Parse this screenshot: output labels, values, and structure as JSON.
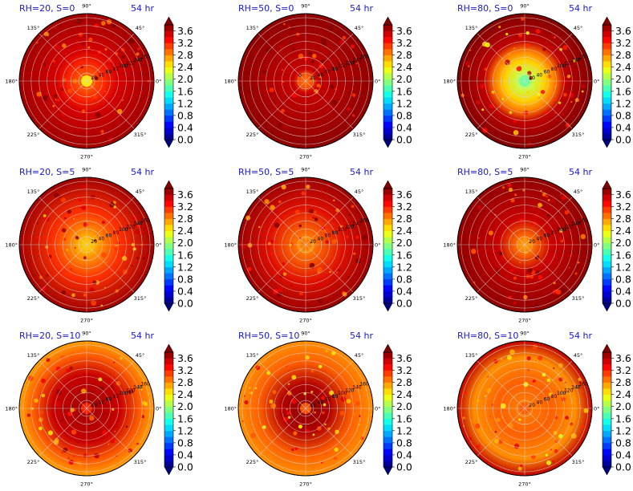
{
  "chart_data": {
    "type": "heatmap",
    "projection": "polar",
    "layout": {
      "rows": 3,
      "cols": 3
    },
    "time_label": "54 hr",
    "angle_ticks": [
      "0°",
      "45°",
      "90°",
      "135°",
      "180°",
      "225°",
      "270°",
      "315°"
    ],
    "colorbar": {
      "colormap": "jet",
      "range": [
        0.0,
        3.8
      ],
      "extend": "both",
      "ticks": [
        "0.0",
        "0.4",
        "0.8",
        "1.2",
        "1.6",
        "2.0",
        "2.4",
        "2.8",
        "3.2",
        "3.6"
      ]
    },
    "panels": [
      {
        "title": "RH=20, S=0",
        "radial_labels": [
          "20",
          "40",
          "60",
          "80",
          "100",
          "120",
          "140",
          "160"
        ],
        "core_value": 2.4,
        "band_value": 3.4
      },
      {
        "title": "RH=50, S=0",
        "radial_labels": [
          "20",
          "40",
          "60",
          "80",
          "100",
          "120",
          "140",
          "160"
        ],
        "core_value": 3.0,
        "band_value": 3.5
      },
      {
        "title": "RH=80, S=0",
        "radial_labels": [
          "20",
          "40",
          "60",
          "80",
          "100",
          "120",
          "140",
          "160"
        ],
        "core_value": 1.8,
        "band_value": 3.0
      },
      {
        "title": "RH=20, S=5",
        "radial_labels": [
          "20",
          "40",
          "60",
          "80",
          "100",
          "120",
          "140",
          "160"
        ],
        "core_value": 2.6,
        "band_value": 3.2
      },
      {
        "title": "RH=50, S=5",
        "radial_labels": [
          "20",
          "40",
          "60",
          "80",
          "100",
          "120",
          "140",
          "160"
        ],
        "core_value": 2.9,
        "band_value": 3.3
      },
      {
        "title": "RH=80, S=5",
        "radial_labels": [
          "20",
          "40",
          "60",
          "80",
          "100",
          "120",
          "140",
          "160"
        ],
        "core_value": 2.8,
        "band_value": 3.3
      },
      {
        "title": "RH=20, S=10",
        "radial_labels": [
          "20",
          "40",
          "60",
          "80",
          "100",
          "120",
          "140",
          "160"
        ],
        "core_value": 3.2,
        "band_value": 3.1
      },
      {
        "title": "RH=50, S=10",
        "radial_labels": [
          "20",
          "40",
          "60",
          "80",
          "100",
          "120",
          "140",
          "160"
        ],
        "core_value": 3.0,
        "band_value": 2.9
      },
      {
        "title": "RH=80, S=10",
        "radial_labels": [
          "20",
          "40",
          "60",
          "80",
          "100",
          "120",
          "140",
          "160"
        ],
        "core_value": 3.0,
        "band_value": 2.9
      }
    ]
  }
}
